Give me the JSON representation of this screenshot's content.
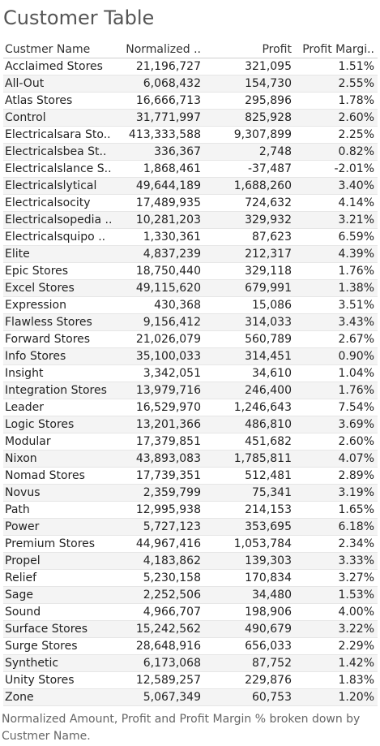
{
  "title": "Customer Table",
  "columns": [
    "Custmer Name",
    "Normalized ..",
    "Profit",
    "Profit Margi.."
  ],
  "rows": [
    [
      "Acclaimed Stores",
      "21,196,727",
      "321,095",
      "1.51%"
    ],
    [
      "All-Out",
      "6,068,432",
      "154,730",
      "2.55%"
    ],
    [
      "Atlas Stores",
      "16,666,713",
      "295,896",
      "1.78%"
    ],
    [
      "Control",
      "31,771,997",
      "825,928",
      "2.60%"
    ],
    [
      "Electricalsara Sto..",
      "413,333,588",
      "9,307,899",
      "2.25%"
    ],
    [
      "Electricalsbea St..",
      "336,367",
      "2,748",
      "0.82%"
    ],
    [
      "Electricalslance S..",
      "1,868,461",
      "-37,487",
      "-2.01%"
    ],
    [
      "Electricalslytical",
      "49,644,189",
      "1,688,260",
      "3.40%"
    ],
    [
      "Electricalsocity",
      "17,489,935",
      "724,632",
      "4.14%"
    ],
    [
      "Electricalsopedia ..",
      "10,281,203",
      "329,932",
      "3.21%"
    ],
    [
      "Electricalsquipo ..",
      "1,330,361",
      "87,623",
      "6.59%"
    ],
    [
      "Elite",
      "4,837,239",
      "212,317",
      "4.39%"
    ],
    [
      "Epic Stores",
      "18,750,440",
      "329,118",
      "1.76%"
    ],
    [
      "Excel Stores",
      "49,115,620",
      "679,991",
      "1.38%"
    ],
    [
      "Expression",
      "430,368",
      "15,086",
      "3.51%"
    ],
    [
      "Flawless Stores",
      "9,156,412",
      "314,033",
      "3.43%"
    ],
    [
      "Forward Stores",
      "21,026,079",
      "560,789",
      "2.67%"
    ],
    [
      "Info Stores",
      "35,100,033",
      "314,451",
      "0.90%"
    ],
    [
      "Insight",
      "3,342,051",
      "34,610",
      "1.04%"
    ],
    [
      "Integration Stores",
      "13,979,716",
      "246,400",
      "1.76%"
    ],
    [
      "Leader",
      "16,529,970",
      "1,246,643",
      "7.54%"
    ],
    [
      "Logic Stores",
      "13,201,366",
      "486,810",
      "3.69%"
    ],
    [
      "Modular",
      "17,379,851",
      "451,682",
      "2.60%"
    ],
    [
      "Nixon",
      "43,893,083",
      "1,785,811",
      "4.07%"
    ],
    [
      "Nomad Stores",
      "17,739,351",
      "512,481",
      "2.89%"
    ],
    [
      "Novus",
      "2,359,799",
      "75,341",
      "3.19%"
    ],
    [
      "Path",
      "12,995,938",
      "214,153",
      "1.65%"
    ],
    [
      "Power",
      "5,727,123",
      "353,695",
      "6.18%"
    ],
    [
      "Premium Stores",
      "44,967,416",
      "1,053,784",
      "2.34%"
    ],
    [
      "Propel",
      "4,183,862",
      "139,303",
      "3.33%"
    ],
    [
      "Relief",
      "5,230,158",
      "170,834",
      "3.27%"
    ],
    [
      "Sage",
      "2,252,506",
      "34,480",
      "1.53%"
    ],
    [
      "Sound",
      "4,966,707",
      "198,906",
      "4.00%"
    ],
    [
      "Surface Stores",
      "15,242,562",
      "490,679",
      "3.22%"
    ],
    [
      "Surge Stores",
      "28,648,916",
      "656,033",
      "2.29%"
    ],
    [
      "Synthetic",
      "6,173,068",
      "87,752",
      "1.42%"
    ],
    [
      "Unity Stores",
      "12,589,257",
      "229,876",
      "1.83%"
    ],
    [
      "Zone",
      "5,067,349",
      "60,753",
      "1.20%"
    ]
  ],
  "caption": "Normalized Amount, Profit and Profit Margin % broken down by Custmer Name."
}
